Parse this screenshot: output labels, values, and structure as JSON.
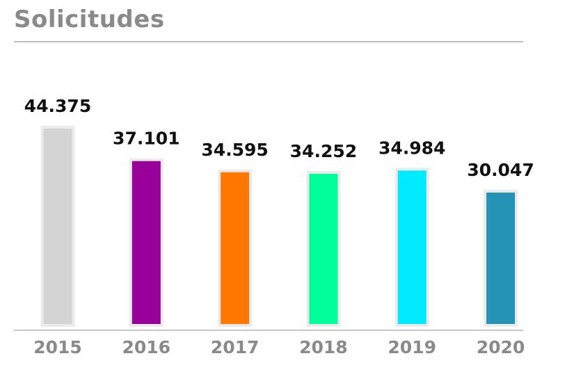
{
  "chart_data": {
    "type": "bar",
    "title": "Solicitudes",
    "categories": [
      "2015",
      "2016",
      "2017",
      "2018",
      "2019",
      "2020"
    ],
    "values": [
      44375,
      37101,
      34595,
      34252,
      34984,
      30047
    ],
    "value_labels": [
      "44.375",
      "37.101",
      "34.595",
      "34.252",
      "34.984",
      "30.047"
    ],
    "colors": [
      "#d4d4d4",
      "#990099",
      "#ff7700",
      "#00ff99",
      "#00eaff",
      "#2493b5"
    ],
    "xlabel": "",
    "ylabel": "",
    "ylim": [
      0,
      50000
    ],
    "grid": false
  }
}
